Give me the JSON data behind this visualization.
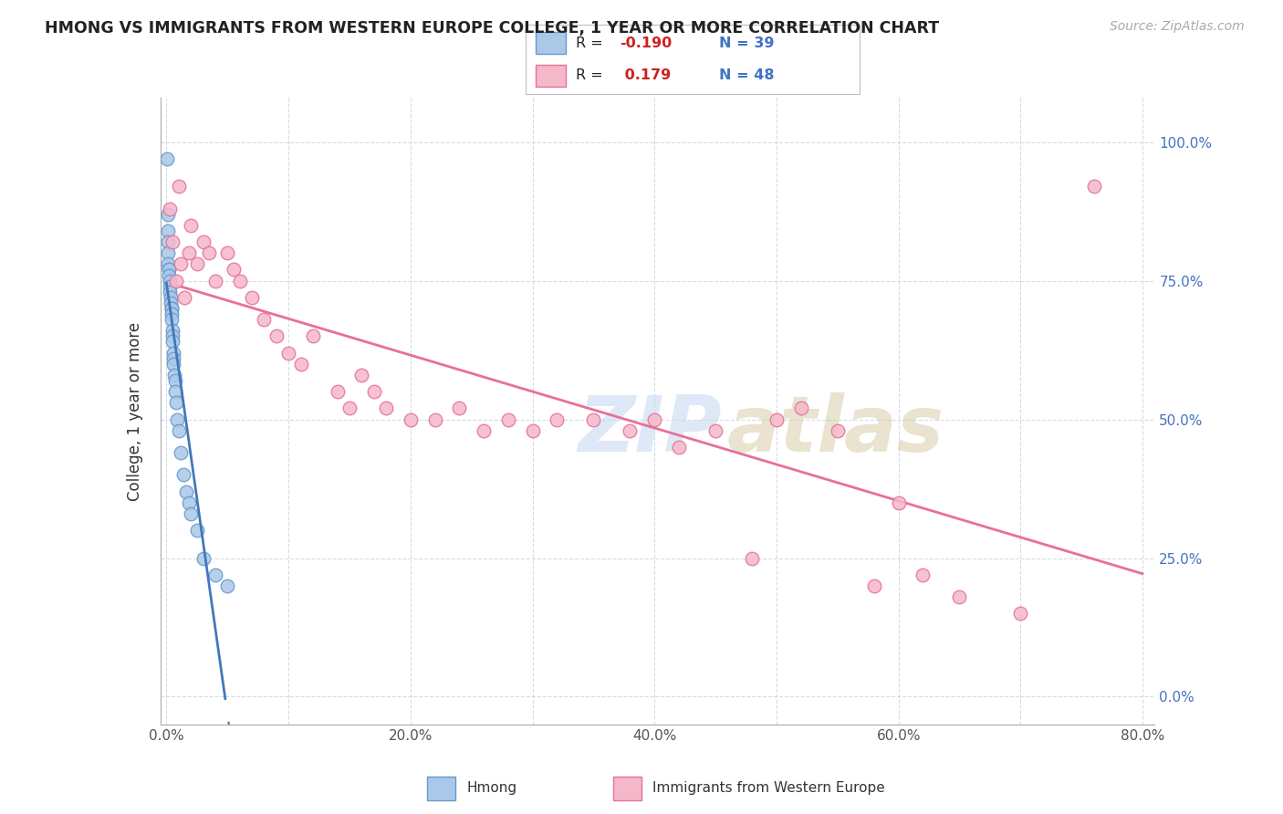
{
  "title": "HMONG VS IMMIGRANTS FROM WESTERN EUROPE COLLEGE, 1 YEAR OR MORE CORRELATION CHART",
  "source": "Source: ZipAtlas.com",
  "ylabel": "College, 1 year or more",
  "xlim": [
    0.0,
    80.0
  ],
  "ylim": [
    0.0,
    1.05
  ],
  "x_ticks": [
    0.0,
    10.0,
    20.0,
    30.0,
    40.0,
    50.0,
    60.0,
    70.0,
    80.0
  ],
  "y_ticks": [
    0.0,
    0.25,
    0.5,
    0.75,
    1.0
  ],
  "y_tick_labels_right": [
    "0.0%",
    "25.0%",
    "50.0%",
    "75.0%",
    "100.0%"
  ],
  "x_tick_labels": [
    "0.0%",
    "",
    "20.0%",
    "",
    "40.0%",
    "",
    "60.0%",
    "",
    "80.0%"
  ],
  "R_hmong": -0.19,
  "N_hmong": 39,
  "R_west_europe": 0.179,
  "N_west_europe": 48,
  "hmong_color": "#aac8e8",
  "hmong_edge_color": "#6699cc",
  "west_europe_color": "#f5b8cb",
  "west_europe_edge_color": "#e87095",
  "hmong_line_color": "#4477bb",
  "west_europe_line_color": "#e87095",
  "background_color": "#ffffff",
  "grid_color": "#c8d4e8",
  "hmong_x": [
    0.05,
    0.08,
    0.1,
    0.12,
    0.15,
    0.15,
    0.18,
    0.2,
    0.22,
    0.25,
    0.28,
    0.3,
    0.32,
    0.35,
    0.38,
    0.4,
    0.42,
    0.45,
    0.48,
    0.5,
    0.52,
    0.55,
    0.58,
    0.6,
    0.65,
    0.7,
    0.75,
    0.8,
    0.9,
    1.0,
    1.2,
    1.4,
    1.6,
    1.8,
    2.0,
    2.5,
    3.0,
    4.0,
    5.0
  ],
  "hmong_y": [
    0.97,
    0.87,
    0.84,
    0.82,
    0.8,
    0.78,
    0.77,
    0.77,
    0.76,
    0.75,
    0.74,
    0.73,
    0.72,
    0.71,
    0.7,
    0.7,
    0.69,
    0.68,
    0.66,
    0.65,
    0.64,
    0.62,
    0.61,
    0.6,
    0.58,
    0.57,
    0.55,
    0.53,
    0.5,
    0.48,
    0.44,
    0.4,
    0.37,
    0.35,
    0.33,
    0.3,
    0.25,
    0.22,
    0.2
  ],
  "west_europe_x": [
    0.3,
    0.5,
    0.8,
    1.0,
    1.2,
    1.5,
    1.8,
    2.0,
    2.5,
    3.0,
    3.5,
    4.0,
    5.0,
    5.5,
    6.0,
    7.0,
    8.0,
    9.0,
    10.0,
    11.0,
    12.0,
    14.0,
    15.0,
    16.0,
    17.0,
    18.0,
    20.0,
    22.0,
    24.0,
    26.0,
    28.0,
    30.0,
    32.0,
    35.0,
    38.0,
    40.0,
    42.0,
    45.0,
    48.0,
    50.0,
    52.0,
    55.0,
    58.0,
    60.0,
    62.0,
    65.0,
    70.0,
    76.0
  ],
  "west_europe_y": [
    0.88,
    0.82,
    0.75,
    0.92,
    0.78,
    0.72,
    0.8,
    0.85,
    0.78,
    0.82,
    0.8,
    0.75,
    0.8,
    0.77,
    0.75,
    0.72,
    0.68,
    0.65,
    0.62,
    0.6,
    0.65,
    0.55,
    0.52,
    0.58,
    0.55,
    0.52,
    0.5,
    0.5,
    0.52,
    0.48,
    0.5,
    0.48,
    0.5,
    0.5,
    0.48,
    0.5,
    0.45,
    0.48,
    0.25,
    0.5,
    0.52,
    0.48,
    0.2,
    0.35,
    0.22,
    0.18,
    0.15,
    0.92
  ]
}
